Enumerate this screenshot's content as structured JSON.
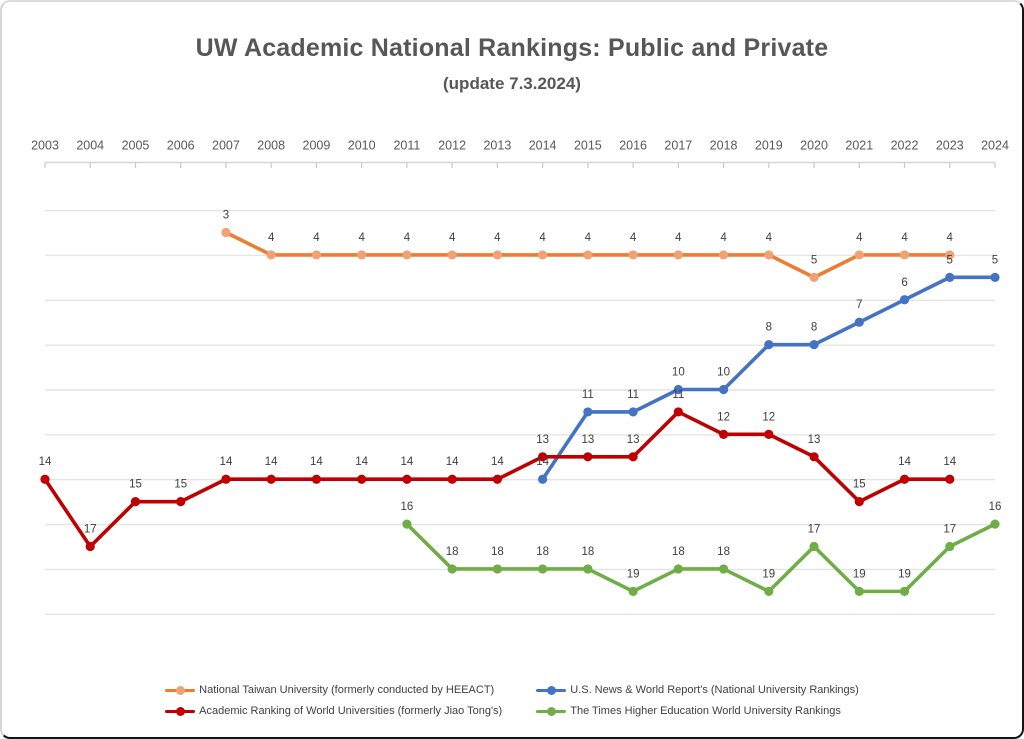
{
  "chart_data": {
    "type": "line",
    "title": "UW Academic National Rankings: Public and Private",
    "subtitle": "(update 7.3.2024)",
    "x": [
      2003,
      2004,
      2005,
      2006,
      2007,
      2008,
      2009,
      2010,
      2011,
      2012,
      2013,
      2014,
      2015,
      2016,
      2017,
      2018,
      2019,
      2020,
      2021,
      2022,
      2023,
      2024
    ],
    "x_axis": {
      "position": "top",
      "tick_labels_visible": true,
      "tick_marks": "at-categories"
    },
    "y_axis": {
      "inverted": true,
      "range": [
        0,
        20
      ],
      "gridline_step": 2,
      "tick_labels_visible": false,
      "grid": true
    },
    "data_labels": "above-points",
    "legend_position": "bottom",
    "series": [
      {
        "name": "National Taiwan University (formerly conducted by HEEACT)",
        "color": "#ED7D31",
        "marker_color": "#F2A176",
        "values": [
          null,
          null,
          null,
          null,
          3,
          4,
          4,
          4,
          4,
          4,
          4,
          4,
          4,
          4,
          4,
          4,
          4,
          5,
          4,
          4,
          4,
          null
        ]
      },
      {
        "name": "U.S. News & World Report's (National University Rankings)",
        "color": "#4472C4",
        "marker_color": "#4472C4",
        "values": [
          null,
          null,
          null,
          null,
          null,
          null,
          null,
          null,
          null,
          null,
          null,
          14,
          11,
          11,
          10,
          10,
          8,
          8,
          7,
          6,
          5,
          5
        ]
      },
      {
        "name": "Academic Ranking of World Universities (formerly Jiao Tong's)",
        "color": "#C00000",
        "marker_color": "#C00000",
        "values": [
          14,
          17,
          15,
          15,
          14,
          14,
          14,
          14,
          14,
          14,
          14,
          13,
          13,
          13,
          11,
          12,
          12,
          13,
          15,
          14,
          14,
          null
        ]
      },
      {
        "name": "The Times Higher Education World University Rankings",
        "color": "#70AD47",
        "marker_color": "#70AD47",
        "values": [
          null,
          null,
          null,
          null,
          null,
          null,
          null,
          null,
          16,
          18,
          18,
          18,
          18,
          19,
          18,
          18,
          19,
          17,
          19,
          19,
          17,
          16
        ]
      }
    ],
    "style": {
      "title_color": "#575757",
      "axis_label_color": "#595959",
      "data_label_color": "#404040",
      "gridline_color": "#E4E4E4",
      "axis_line_color": "#D6D6D6",
      "tick_color": "#C9C9C9",
      "background": "#FFFFFF"
    }
  }
}
